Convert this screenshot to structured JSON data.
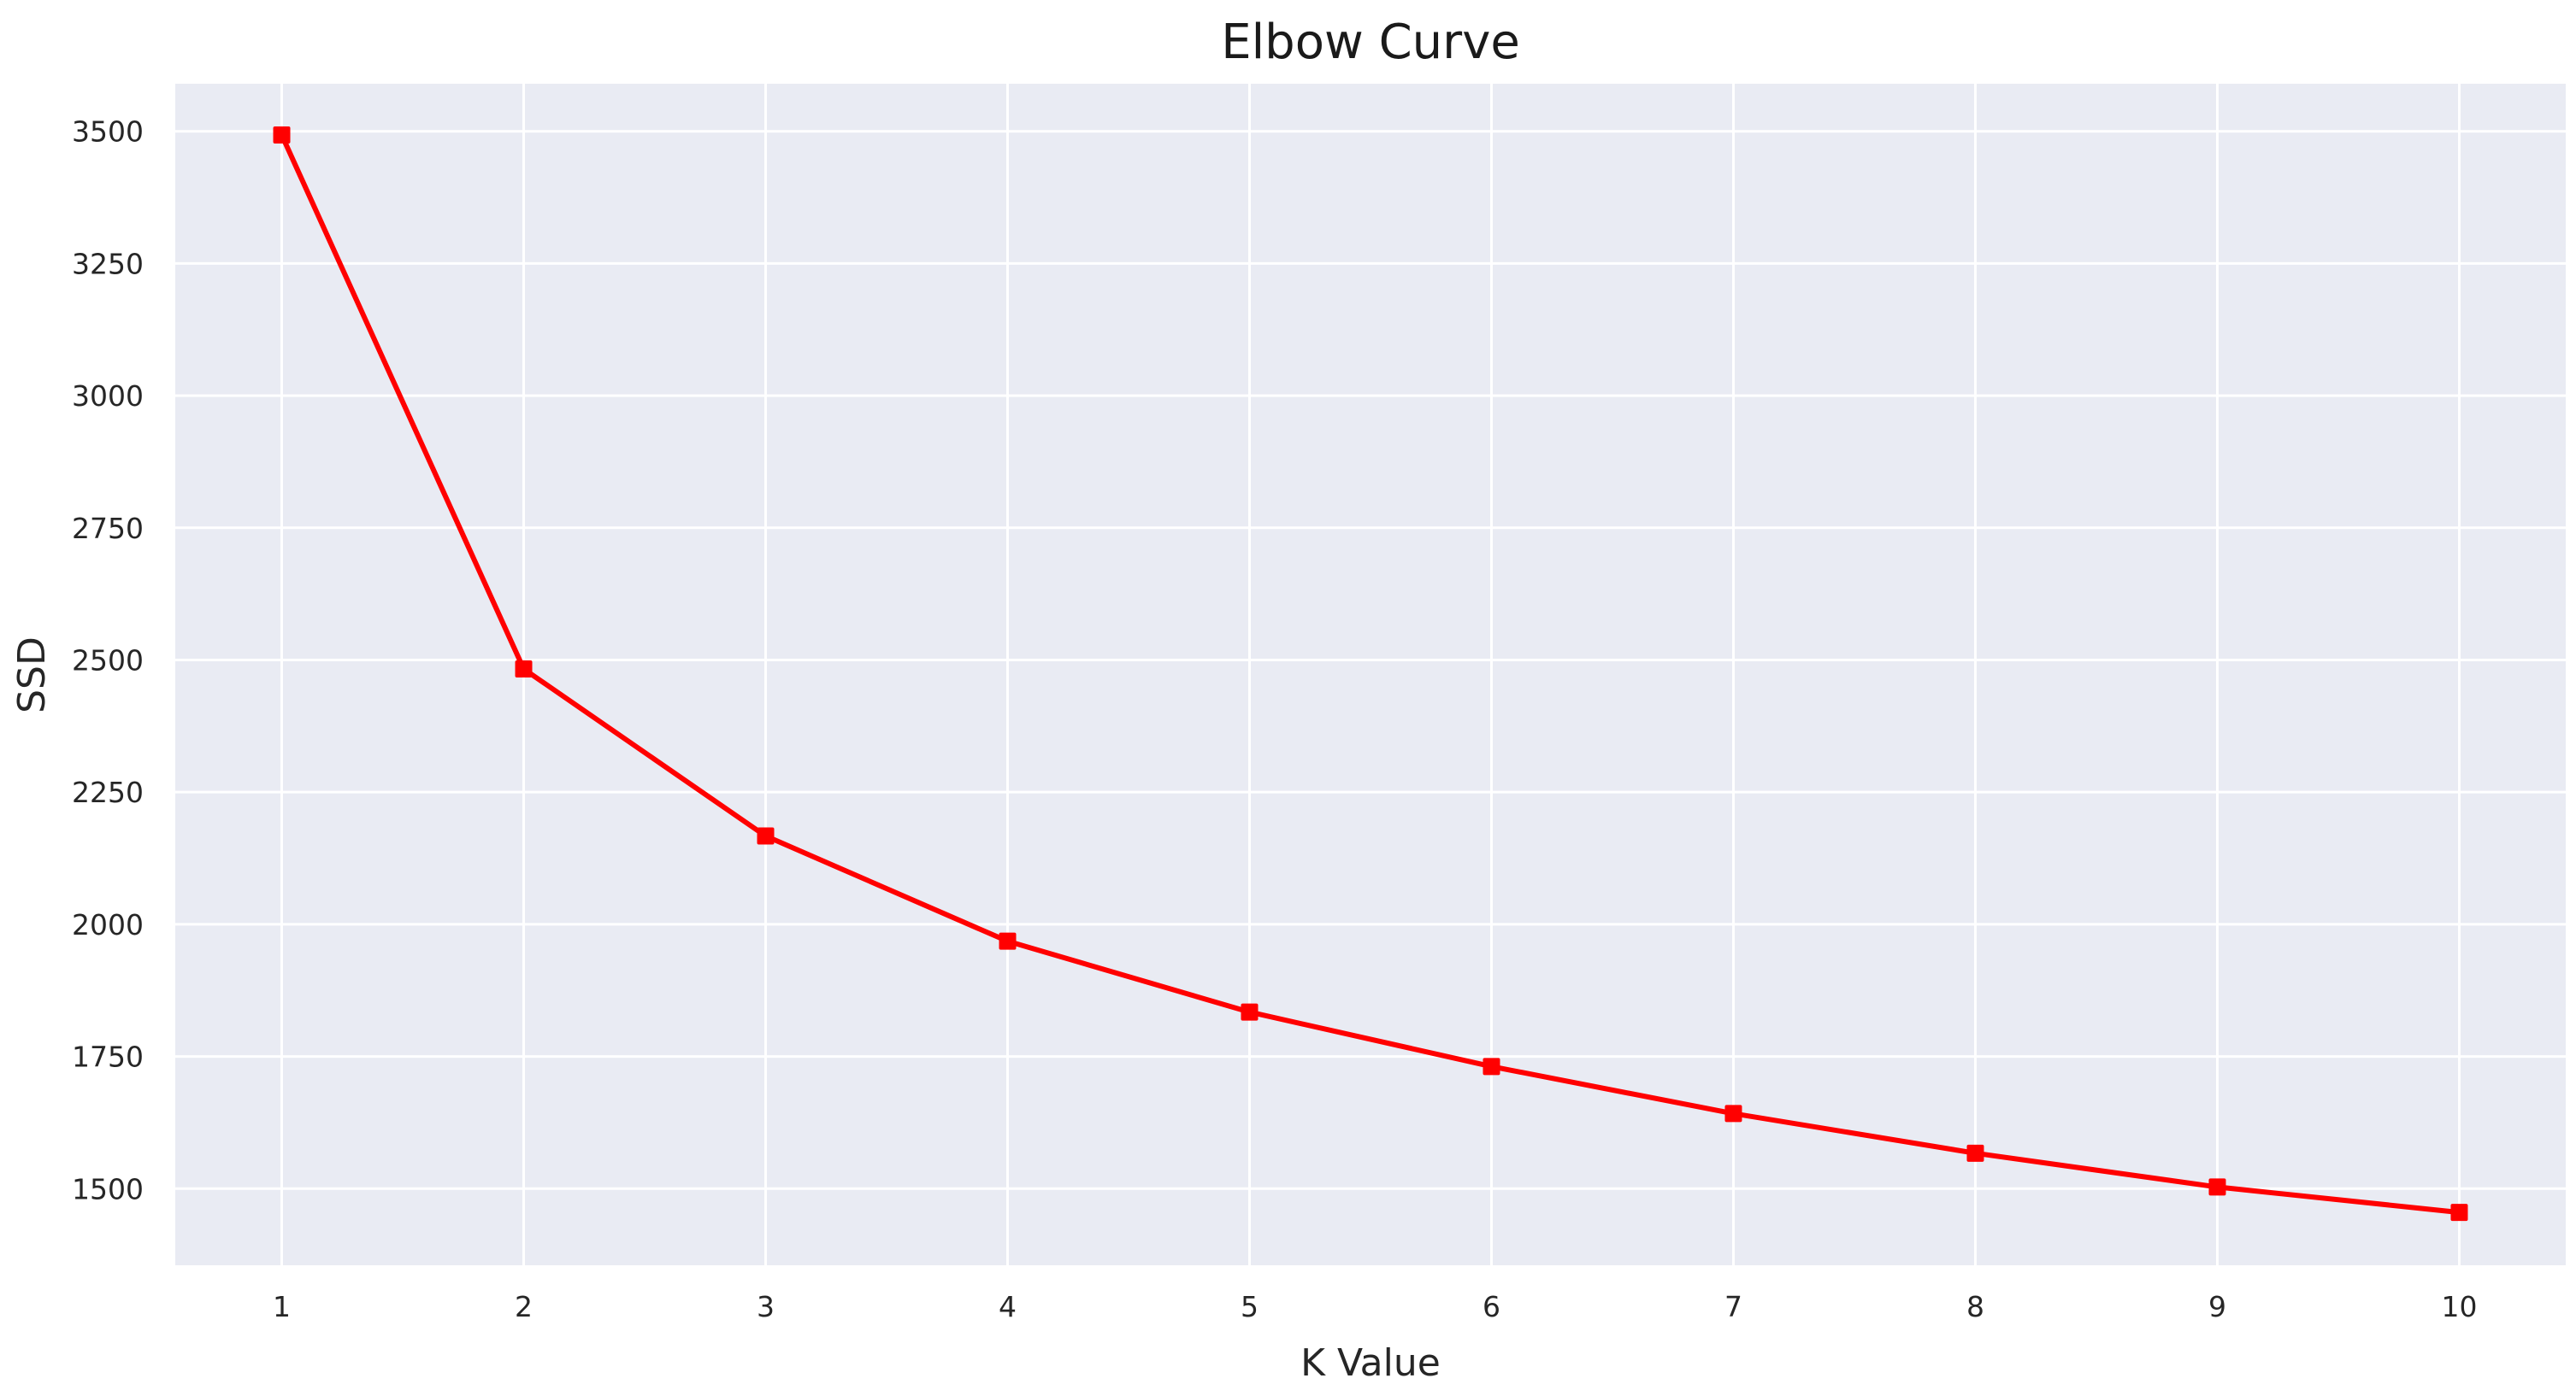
{
  "chart_data": {
    "type": "line",
    "title": "Elbow Curve",
    "xlabel": "K Value",
    "ylabel": "SSD",
    "x": [
      1,
      2,
      3,
      4,
      5,
      6,
      7,
      8,
      9,
      10
    ],
    "series": [
      {
        "values": [
          3493,
          2483,
          2167,
          1968,
          1834,
          1731,
          1642,
          1567,
          1503,
          1455
        ],
        "color": "#ff0000",
        "marker": "square"
      }
    ],
    "xticks": [
      1,
      2,
      3,
      4,
      5,
      6,
      7,
      8,
      9,
      10
    ],
    "yticks": [
      1500,
      1750,
      2000,
      2250,
      2500,
      2750,
      3000,
      3250,
      3500
    ],
    "xlim": [
      0.56,
      10.44
    ],
    "ylim": [
      1355,
      3590
    ],
    "grid": true,
    "background_color": "#e9ebf3",
    "grid_color": "#ffffff"
  }
}
